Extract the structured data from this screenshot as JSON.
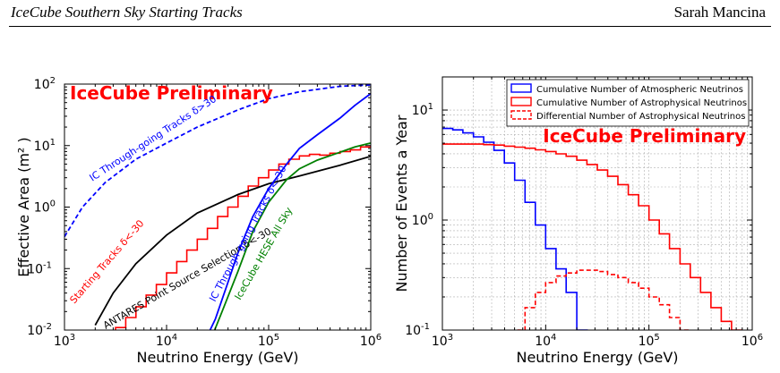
{
  "header": {
    "left": "IceCube Southern Sky Starting Tracks",
    "right": "Sarah Mancina"
  },
  "chart_data": [
    {
      "type": "line",
      "watermark": "IceCube Preliminary",
      "xlabel": "Neutrino Energy (GeV)",
      "ylabel": "Effective Area (m² )",
      "xscale": "log",
      "yscale": "log",
      "xlim": [
        1000,
        1000000
      ],
      "ylim": [
        0.01,
        100
      ],
      "x_ticks": [
        {
          "v": 1000,
          "b": "10",
          "e": "3"
        },
        {
          "v": 10000,
          "b": "10",
          "e": "4"
        },
        {
          "v": 100000,
          "b": "10",
          "e": "5"
        },
        {
          "v": 1000000,
          "b": "10",
          "e": "6"
        }
      ],
      "y_ticks": [
        {
          "v": 0.01,
          "b": "10",
          "e": "-2"
        },
        {
          "v": 0.1,
          "b": "10",
          "e": "-1"
        },
        {
          "v": 1,
          "b": "10",
          "e": "0"
        },
        {
          "v": 10,
          "b": "10",
          "e": "1"
        },
        {
          "v": 100,
          "b": "10",
          "e": "2"
        }
      ],
      "grid": false,
      "series": [
        {
          "name": "IC Through-going Tracks δ>30",
          "color": "#0000ff",
          "style": "dashed",
          "step": false,
          "x": [
            1000,
            1500,
            2500,
            5000,
            10000,
            20000,
            50000,
            100000,
            200000,
            500000,
            1000000
          ],
          "y": [
            0.33,
            1.0,
            2.5,
            6.0,
            11.0,
            20.0,
            38.0,
            58.0,
            75.0,
            92.0,
            97.0
          ]
        },
        {
          "name": "Starting Tracks δ<-30",
          "color": "#ff0000",
          "style": "solid",
          "step": true,
          "x": [
            3160,
            3980,
            5010,
            6310,
            7940,
            10000,
            12600,
            15800,
            20000,
            25100,
            31600,
            39800,
            50100,
            63100,
            79400,
            100000,
            126000,
            158000,
            200000,
            251000,
            316000,
            398000,
            501000,
            631000,
            794000,
            1000000
          ],
          "y": [
            0.011,
            0.016,
            0.024,
            0.037,
            0.055,
            0.085,
            0.13,
            0.2,
            0.3,
            0.45,
            0.7,
            1.0,
            1.5,
            2.2,
            3.0,
            4.0,
            5.0,
            6.0,
            6.8,
            7.2,
            7.0,
            7.5,
            8.0,
            8.5,
            9.5,
            10.0
          ]
        },
        {
          "name": "ANTARES Point Source Selection δ<-30",
          "color": "#000000",
          "style": "solid",
          "step": false,
          "x": [
            2000,
            3000,
            5000,
            10000,
            20000,
            50000,
            100000,
            200000,
            500000,
            1000000
          ],
          "y": [
            0.012,
            0.04,
            0.12,
            0.35,
            0.8,
            1.6,
            2.4,
            3.2,
            4.8,
            6.7
          ]
        },
        {
          "name": "IC Through-going Tracks δ<-30",
          "color": "#0000ff",
          "style": "solid",
          "step": false,
          "x": [
            25000,
            30000,
            40000,
            50000,
            70000,
            100000,
            150000,
            200000,
            300000,
            500000,
            700000,
            1000000
          ],
          "y": [
            0.008,
            0.015,
            0.06,
            0.18,
            0.7,
            2.0,
            5.0,
            9.0,
            15.0,
            28.0,
            45.0,
            70.0
          ]
        },
        {
          "name": "IceCube HESE All Sky",
          "color": "#008000",
          "style": "solid",
          "step": false,
          "x": [
            28000,
            35000,
            50000,
            70000,
            100000,
            150000,
            200000,
            300000,
            500000,
            700000,
            1000000
          ],
          "y": [
            0.008,
            0.02,
            0.09,
            0.4,
            1.2,
            2.8,
            4.2,
            5.8,
            7.8,
            9.5,
            11.0
          ]
        }
      ]
    },
    {
      "type": "line",
      "watermark": "IceCube Preliminary",
      "xlabel": "Neutrino Energy (GeV)",
      "ylabel": "Number of Events a Year",
      "xscale": "log",
      "yscale": "log",
      "xlim": [
        1000,
        1000000
      ],
      "ylim": [
        0.1,
        20
      ],
      "x_ticks": [
        {
          "v": 1000,
          "b": "10",
          "e": "3"
        },
        {
          "v": 10000,
          "b": "10",
          "e": "4"
        },
        {
          "v": 100000,
          "b": "10",
          "e": "5"
        },
        {
          "v": 1000000,
          "b": "10",
          "e": "6"
        }
      ],
      "y_ticks": [
        {
          "v": 0.1,
          "b": "10",
          "e": "-1"
        },
        {
          "v": 1,
          "b": "10",
          "e": "0"
        },
        {
          "v": 10,
          "b": "10",
          "e": "1"
        }
      ],
      "grid": true,
      "legend_position": "top-right",
      "series": [
        {
          "name": "Cumulative Number of Atmospheric Neutrinos",
          "color": "#0000ff",
          "style": "solid",
          "step": true,
          "x": [
            1000,
            1260,
            1580,
            2000,
            2510,
            3160,
            3980,
            5010,
            6310,
            7940,
            10000,
            12600,
            15800,
            20000
          ],
          "y": [
            6.8,
            6.6,
            6.2,
            5.7,
            5.1,
            4.3,
            3.3,
            2.3,
            1.45,
            0.9,
            0.55,
            0.36,
            0.22,
            0.1
          ]
        },
        {
          "name": "Cumulative Number of Astrophysical Neutrinos",
          "color": "#ff0000",
          "style": "solid",
          "step": true,
          "x": [
            1000,
            1260,
            1580,
            2000,
            2510,
            3160,
            3980,
            5010,
            6310,
            7940,
            10000,
            12600,
            15800,
            20000,
            25100,
            31600,
            39800,
            50100,
            63100,
            79400,
            100000,
            126000,
            158000,
            200000,
            251000,
            316000,
            398000,
            501000,
            631000
          ],
          "y": [
            4.9,
            4.9,
            4.9,
            4.9,
            4.85,
            4.8,
            4.7,
            4.6,
            4.5,
            4.35,
            4.2,
            4.0,
            3.8,
            3.5,
            3.2,
            2.85,
            2.5,
            2.1,
            1.7,
            1.35,
            1.0,
            0.75,
            0.55,
            0.4,
            0.3,
            0.22,
            0.16,
            0.12,
            0.1
          ]
        },
        {
          "name": "Differential Number of Astrophysical Neutrinos",
          "color": "#ff0000",
          "style": "dashed",
          "step": true,
          "x": [
            5010,
            6310,
            7940,
            10000,
            12600,
            15800,
            20000,
            25100,
            31600,
            39800,
            50100,
            63100,
            79400,
            100000,
            126000,
            158000,
            200000
          ],
          "y": [
            0.1,
            0.16,
            0.22,
            0.27,
            0.31,
            0.33,
            0.35,
            0.35,
            0.34,
            0.32,
            0.3,
            0.27,
            0.24,
            0.2,
            0.17,
            0.13,
            0.1
          ]
        }
      ]
    }
  ],
  "annotations_left": [
    "IC Through-going Tracks δ>30",
    "Starting Tracks δ<-30",
    "ANTARES Point Source Selection δ<-30",
    "IC Through-going Tracks δ<-30",
    "IceCube HESE All Sky"
  ]
}
